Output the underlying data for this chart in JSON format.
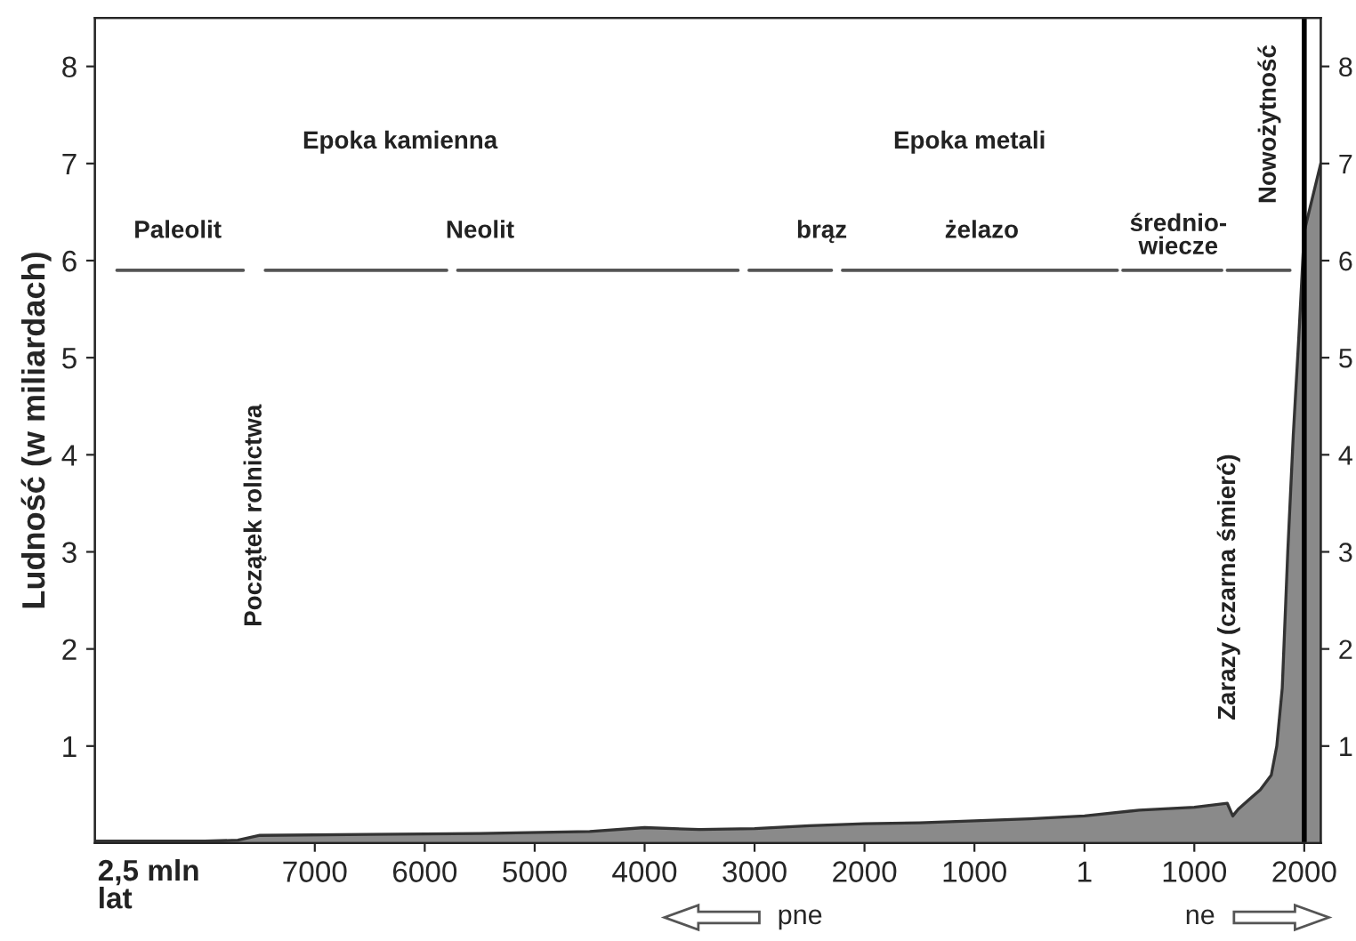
{
  "chart_data": {
    "type": "area",
    "ylabel": "Ludność (w miliardach)",
    "x": [
      -9000,
      -8000,
      -7700,
      -7500,
      -6500,
      -5500,
      -4500,
      -4000,
      -3500,
      -3000,
      -2500,
      -2000,
      -1500,
      -1000,
      -500,
      1,
      500,
      1000,
      1300,
      1350,
      1400,
      1500,
      1600,
      1700,
      1750,
      1800,
      1850,
      1900,
      1950,
      2000,
      2150
    ],
    "series": [
      {
        "color": "#8a8a8a",
        "values": [
          0.02,
          0.02,
          0.03,
          0.08,
          0.09,
          0.1,
          0.12,
          0.16,
          0.14,
          0.15,
          0.18,
          0.2,
          0.21,
          0.23,
          0.25,
          0.28,
          0.34,
          0.37,
          0.41,
          0.28,
          0.35,
          0.45,
          0.55,
          0.7,
          1.0,
          1.6,
          3.0,
          4.2,
          5.2,
          6.3,
          7.0
        ]
      },
      {
        "type": "line",
        "color": "#555555",
        "x": [
          -8800,
          -7650,
          null,
          -7450,
          -5800,
          null,
          -5700,
          -3150,
          null,
          -3050,
          -2300,
          null,
          -2200,
          300,
          null,
          350,
          1250,
          null,
          1300,
          1870
        ],
        "values": [
          5.9,
          5.9,
          null,
          5.9,
          5.9,
          null,
          5.9,
          5.9,
          null,
          5.9,
          5.9,
          null,
          5.9,
          5.9,
          null,
          5.9,
          5.9,
          null,
          5.9,
          5.9
        ]
      }
    ],
    "xlim": [
      -9000,
      2150
    ],
    "xticks": [
      {
        "value": -7000,
        "label": "7000"
      },
      {
        "value": -6000,
        "label": "6000"
      },
      {
        "value": -5000,
        "label": "5000"
      },
      {
        "value": -4000,
        "label": "4000"
      },
      {
        "value": -3000,
        "label": "3000"
      },
      {
        "value": -2000,
        "label": "2000"
      },
      {
        "value": -1000,
        "label": "1000"
      },
      1,
      1000,
      2000
    ],
    "ylim": [
      0,
      8.5
    ],
    "yticks": [
      1,
      2,
      3,
      4,
      5,
      6,
      7,
      8
    ],
    "y2lim": [
      0,
      8.5
    ],
    "y2ticks": [
      1,
      2,
      3,
      4,
      5,
      6,
      7,
      8
    ],
    "ref_lines": [
      {
        "axis": "x",
        "value": 2000,
        "color": "#000000"
      }
    ],
    "annotations": [
      "Epoka kamienna",
      "Epoka metali",
      "Paleolit",
      "Neolit",
      "brąz",
      "żelazo",
      "średnio-\nwiecze",
      "Nowożytność",
      "Początek rolnictwa",
      "Zarazy (czarna śmierć)",
      "2,5 mln\nlat",
      "pne",
      "ne"
    ],
    "grid": false
  }
}
